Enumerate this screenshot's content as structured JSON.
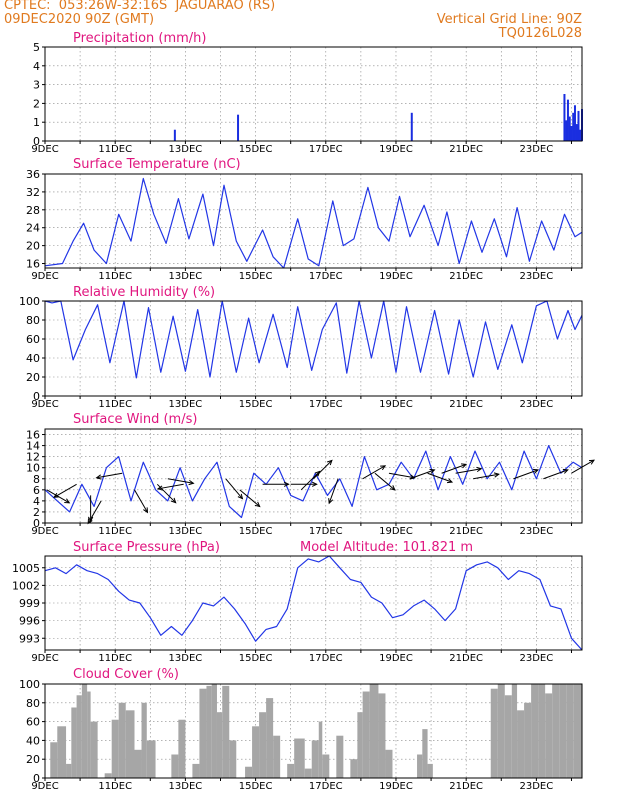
{
  "header": {
    "line1_left": "CPTEC:  053:26W-32:16S  JAGUARAO (RS)",
    "line2_left": "09DEC2020 90Z (GMT)",
    "line2_right": "Vertical Grid Line: 90Z",
    "line3_right": "TQ0126L028"
  },
  "colors": {
    "header": "#e07a1f",
    "title": "#e0167f",
    "line": "#2236e6",
    "bar": "#1a2ee0",
    "cloud": "#a6a6a6",
    "arrow": "#000000"
  },
  "date_labels": [
    "9DEC",
    "11DEC",
    "13DEC",
    "15DEC",
    "17DEC",
    "19DEC",
    "21DEC",
    "23DEC"
  ],
  "chart_data": [
    {
      "id": "precip",
      "type": "bar",
      "title": "Precipitation (mm/h)",
      "ylim": [
        0,
        5
      ],
      "yticks": [
        0,
        1,
        2,
        3,
        4,
        5
      ],
      "x": [
        3.7,
        5.5,
        10.45,
        14.8,
        14.85,
        14.9,
        14.95,
        15.0,
        15.05,
        15.1,
        15.15,
        15.2,
        15.25,
        15.3
      ],
      "values": [
        0.6,
        1.4,
        1.5,
        2.5,
        1.1,
        2.2,
        1.3,
        0.8,
        1.5,
        1.9,
        0.9,
        1.6,
        0.6,
        1.7
      ]
    },
    {
      "id": "temp",
      "type": "line",
      "title": "Surface Temperature (nC)",
      "ylim": [
        15,
        36
      ],
      "yticks": [
        16,
        20,
        24,
        28,
        32,
        36
      ],
      "x": [
        0,
        0.5,
        0.8,
        1.1,
        1.4,
        1.75,
        2.1,
        2.45,
        2.8,
        3.1,
        3.45,
        3.8,
        4.1,
        4.5,
        4.8,
        5.1,
        5.45,
        5.75,
        6.2,
        6.5,
        6.8,
        7.2,
        7.5,
        7.8,
        8.2,
        8.5,
        8.8,
        9.2,
        9.5,
        9.8,
        10.1,
        10.4,
        10.8,
        11.2,
        11.45,
        11.8,
        12.15,
        12.45,
        12.8,
        13.15,
        13.45,
        13.8,
        14.15,
        14.5,
        14.8,
        15.1,
        15.3
      ],
      "values": [
        15.5,
        16,
        21,
        25,
        19,
        16,
        27,
        21,
        35,
        27,
        20.5,
        30.5,
        21.5,
        31.5,
        20,
        33.5,
        21,
        16.5,
        23.5,
        17.5,
        15,
        26,
        17,
        15.5,
        30,
        20,
        21.5,
        33,
        24,
        21,
        31,
        22,
        29,
        20,
        27.5,
        16,
        25.5,
        18.5,
        26,
        17.5,
        28.5,
        16.5,
        25.5,
        19,
        27,
        22,
        23
      ]
    },
    {
      "id": "rh",
      "type": "line",
      "title": "Relative Humidity (%)",
      "ylim": [
        0,
        100
      ],
      "yticks": [
        0,
        20,
        40,
        60,
        80,
        100
      ],
      "x": [
        0,
        0.2,
        0.45,
        0.8,
        1.15,
        1.5,
        1.85,
        2.25,
        2.6,
        2.95,
        3.3,
        3.65,
        4,
        4.35,
        4.7,
        5.05,
        5.45,
        5.8,
        6.1,
        6.5,
        6.9,
        7.2,
        7.6,
        7.9,
        8.3,
        8.6,
        8.95,
        9.3,
        9.65,
        10,
        10.3,
        10.7,
        11.1,
        11.5,
        11.8,
        12.2,
        12.55,
        12.9,
        13.3,
        13.6,
        14,
        14.3,
        14.6,
        14.9,
        15.1,
        15.3
      ],
      "values": [
        100,
        98,
        100,
        38,
        70,
        96,
        35,
        100,
        19,
        93,
        25,
        84,
        26,
        91,
        20,
        100,
        25,
        82,
        35,
        86,
        30,
        94,
        27,
        70,
        98,
        24,
        100,
        40,
        100,
        25,
        94,
        25,
        90,
        23,
        80,
        20,
        78,
        28,
        75,
        35,
        95,
        100,
        60,
        90,
        70,
        85
      ]
    },
    {
      "id": "wind",
      "type": "line",
      "title": "Surface Wind (m/s)",
      "ylim": [
        0,
        17
      ],
      "yticks": [
        0,
        2,
        4,
        6,
        8,
        10,
        12,
        14,
        16
      ],
      "x": [
        0,
        0.35,
        0.7,
        1.05,
        1.4,
        1.75,
        2.1,
        2.45,
        2.8,
        3.15,
        3.5,
        3.85,
        4.2,
        4.55,
        4.9,
        5.25,
        5.6,
        5.95,
        6.3,
        6.65,
        7,
        7.35,
        7.7,
        8.05,
        8.4,
        8.75,
        9.1,
        9.45,
        9.8,
        10.15,
        10.5,
        10.85,
        11.2,
        11.55,
        11.9,
        12.25,
        12.6,
        12.95,
        13.3,
        13.65,
        14,
        14.35,
        14.7,
        15.05,
        15.3
      ],
      "values": [
        6,
        4,
        2,
        7,
        3,
        10,
        12,
        4,
        11,
        6,
        4,
        10,
        4,
        8,
        11,
        3,
        1,
        9,
        7,
        10,
        5,
        4,
        9,
        5,
        8,
        3,
        12,
        6,
        7,
        11,
        8,
        13,
        6,
        12,
        7,
        13,
        8,
        11,
        6,
        13,
        8,
        14,
        9,
        11,
        10
      ],
      "arrows": [
        {
          "x": 0.05,
          "speed": 6,
          "dir": 120
        },
        {
          "x": 0.9,
          "speed": 7,
          "dir": 240
        },
        {
          "x": 1.3,
          "speed": 5,
          "dir": 180
        },
        {
          "x": 1.6,
          "speed": 4,
          "dir": 210
        },
        {
          "x": 2.2,
          "speed": 9,
          "dir": 260
        },
        {
          "x": 2.55,
          "speed": 6,
          "dir": 150
        },
        {
          "x": 3.2,
          "speed": 7,
          "dir": 135
        },
        {
          "x": 3.5,
          "speed": 8,
          "dir": 100
        },
        {
          "x": 3.95,
          "speed": 7,
          "dir": 260
        },
        {
          "x": 5.15,
          "speed": 8,
          "dir": 140
        },
        {
          "x": 5.55,
          "speed": 6,
          "dir": 130
        },
        {
          "x": 6.2,
          "speed": 7,
          "dir": 90
        },
        {
          "x": 7.0,
          "speed": 7,
          "dir": 90
        },
        {
          "x": 7.3,
          "speed": 6,
          "dir": 45
        },
        {
          "x": 7.65,
          "speed": 8,
          "dir": 45
        },
        {
          "x": 8.35,
          "speed": 8,
          "dir": 200
        },
        {
          "x": 9.05,
          "speed": 8,
          "dir": 60
        },
        {
          "x": 9.4,
          "speed": 9,
          "dir": 130
        },
        {
          "x": 9.8,
          "speed": 9,
          "dir": 100
        },
        {
          "x": 10.4,
          "speed": 8,
          "dir": 70
        },
        {
          "x": 10.9,
          "speed": 9,
          "dir": 110
        },
        {
          "x": 11.3,
          "speed": 9,
          "dir": 70
        },
        {
          "x": 11.7,
          "speed": 9,
          "dir": 80
        },
        {
          "x": 12.2,
          "speed": 8,
          "dir": 80
        },
        {
          "x": 13.35,
          "speed": 8,
          "dir": 70
        },
        {
          "x": 14.2,
          "speed": 8,
          "dir": 70
        },
        {
          "x": 15.0,
          "speed": 9,
          "dir": 60
        }
      ]
    },
    {
      "id": "pres",
      "type": "line",
      "title": "Surface Pressure (hPa)",
      "subtitle": "Model Altitude: 101.821 m",
      "ylim": [
        991,
        1007
      ],
      "yticks": [
        993,
        996,
        999,
        1002,
        1005
      ],
      "x": [
        0,
        0.3,
        0.6,
        0.9,
        1.2,
        1.5,
        1.8,
        2.1,
        2.4,
        2.7,
        3.0,
        3.3,
        3.6,
        3.9,
        4.2,
        4.5,
        4.8,
        5.1,
        5.4,
        5.7,
        6.0,
        6.3,
        6.6,
        6.9,
        7.2,
        7.5,
        7.8,
        8.1,
        8.4,
        8.7,
        9.0,
        9.3,
        9.6,
        9.9,
        10.2,
        10.5,
        10.8,
        11.1,
        11.4,
        11.7,
        12.0,
        12.3,
        12.6,
        12.9,
        13.2,
        13.5,
        13.8,
        14.1,
        14.4,
        14.7,
        15.0,
        15.3
      ],
      "values": [
        1004.5,
        1005,
        1004,
        1005.5,
        1004.5,
        1004,
        1003,
        1001,
        999.5,
        999,
        996.5,
        993.5,
        995,
        993.5,
        996,
        999,
        998.5,
        1000,
        998,
        995.5,
        992.5,
        994.5,
        995,
        998,
        1005,
        1006.5,
        1006,
        1007,
        1005,
        1003,
        1002.5,
        1000,
        999,
        996.5,
        997,
        998.5,
        999.5,
        998,
        996,
        998,
        1004.5,
        1005.5,
        1006,
        1005,
        1003,
        1004.5,
        1004,
        1003,
        998.5,
        998,
        993,
        991
      ]
    },
    {
      "id": "cloud",
      "type": "area",
      "title": "Cloud Cover (%)",
      "ylim": [
        0,
        100
      ],
      "yticks": [
        0,
        20,
        40,
        60,
        80,
        100
      ],
      "x": [
        0,
        0.15,
        0.35,
        0.6,
        0.75,
        0.9,
        1.05,
        1.2,
        1.3,
        1.5,
        1.7,
        1.9,
        2.1,
        2.3,
        2.55,
        2.75,
        2.9,
        3.15,
        3.35,
        3.6,
        3.8,
        4.0,
        4.2,
        4.4,
        4.6,
        4.75,
        4.9,
        5.05,
        5.25,
        5.45,
        5.7,
        5.9,
        6.1,
        6.3,
        6.5,
        6.7,
        6.9,
        7.1,
        7.4,
        7.6,
        7.8,
        7.9,
        8.1,
        8.3,
        8.5,
        8.7,
        8.9,
        9.05,
        9.25,
        9.5,
        9.7,
        9.9,
        10.1,
        10.3,
        10.45,
        10.6,
        10.75,
        10.9,
        11.05,
        11.25,
        11.45,
        11.65,
        11.85,
        12.05,
        12.25,
        12.45,
        12.7,
        12.9,
        13.1,
        13.3,
        13.45,
        13.65,
        13.85,
        14.05,
        14.25,
        14.45,
        14.65,
        14.85,
        15.05,
        15.3
      ],
      "values": [
        0,
        38,
        55,
        15,
        75,
        88,
        100,
        92,
        60,
        0,
        5,
        62,
        80,
        72,
        30,
        80,
        40,
        0,
        0,
        25,
        62,
        0,
        15,
        95,
        98,
        100,
        70,
        98,
        40,
        0,
        12,
        55,
        70,
        85,
        45,
        0,
        15,
        42,
        10,
        40,
        60,
        25,
        0,
        45,
        0,
        20,
        70,
        92,
        100,
        90,
        30,
        0,
        0,
        0,
        0,
        25,
        52,
        15,
        0,
        0,
        0,
        0,
        0,
        0,
        0,
        0,
        95,
        100,
        88,
        100,
        72,
        80,
        100,
        100,
        90,
        100,
        100,
        100,
        100,
        100
      ]
    }
  ]
}
